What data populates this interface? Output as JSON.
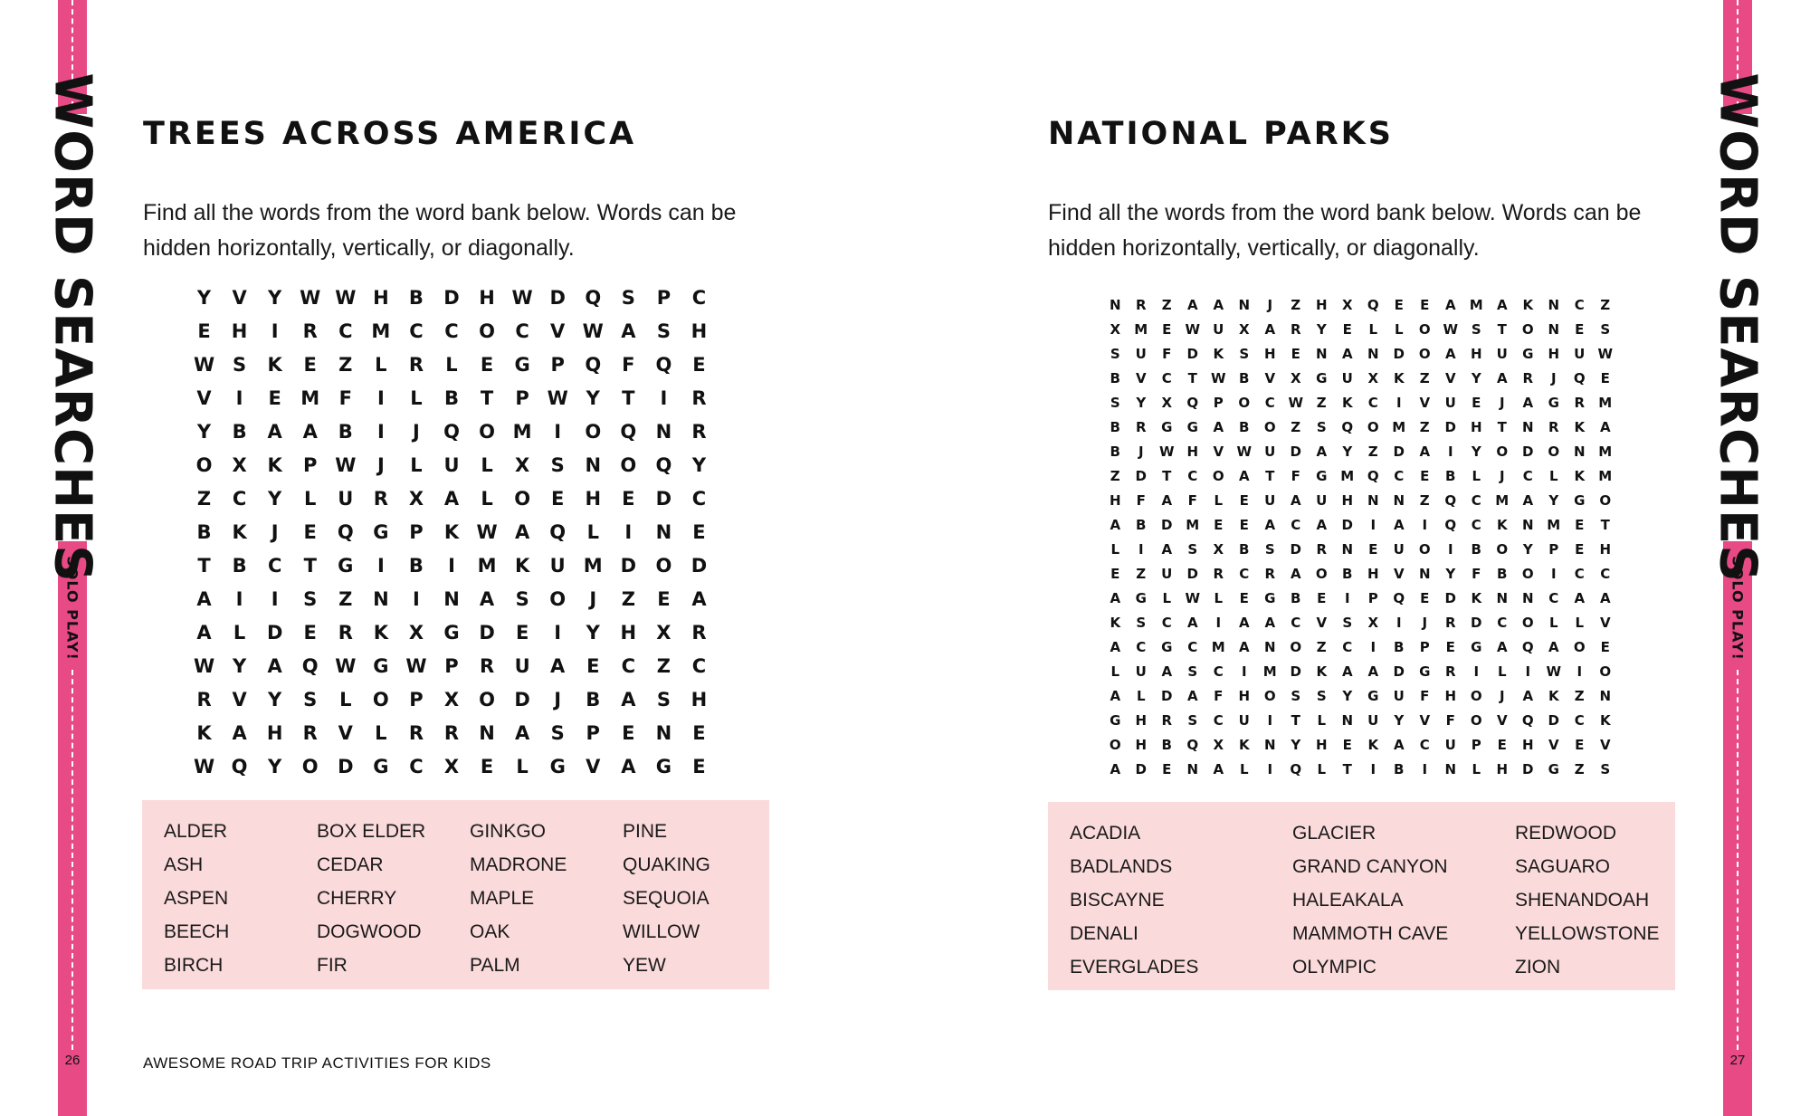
{
  "colors": {
    "accent_pink": "#e84a86",
    "bank_background": "#fbdadb",
    "text": "#111111"
  },
  "sidebar": {
    "title": "WORD SEARCHES",
    "subtitle": "SOLO PLAY!"
  },
  "footer": {
    "book_title": "AWESOME ROAD TRIP ACTIVITIES FOR KIDS"
  },
  "left_page": {
    "page_number": "26",
    "title": "TREES ACROSS AMERICA",
    "instructions": "Find all the words from the word bank below. Words can be hidden horizontally, vertically, or diagonally.",
    "grid": [
      "YVYWWHBDHWDQSPC",
      "EHIRCMCCOCVWASH",
      "WSKEZLRLEGPQFQE",
      "VIEMFILBTPWYTIR",
      "YBAABIJQOMIOQNR",
      "OXKPWJLULXSNOQY",
      "ZCYLURXALOEHEDC",
      "BKJEQGPKWAQLINE",
      "TBCTGIBIMKUMDOD",
      "AIISZNINASOJZEA",
      "ALDERKXGDEIYHXR",
      "WYAQWGWPRUAECZC",
      "RVYSLOPXODJBASH",
      "KAHRVLRRNASPENE",
      "WQYODGCXELGVAGE"
    ],
    "word_bank": [
      [
        "ALDER",
        "ASH",
        "ASPEN",
        "BEECH",
        "BIRCH"
      ],
      [
        "BOX ELDER",
        "CEDAR",
        "CHERRY",
        "DOGWOOD",
        "FIR"
      ],
      [
        "GINKGO",
        "MADRONE",
        "MAPLE",
        "OAK",
        "PALM"
      ],
      [
        "PINE",
        "QUAKING",
        "SEQUOIA",
        "WILLOW",
        "YEW"
      ]
    ]
  },
  "right_page": {
    "page_number": "27",
    "title": "NATIONAL PARKS",
    "instructions": "Find all the words from the word bank below. Words can be hidden horizontally, vertically, or diagonally.",
    "grid": [
      "NRZAANJZHXQEEAMAKNCZ",
      "XMEWUXARYELLOWSTONES",
      "SUFDKSHENANDOAHUGHUW",
      "BVCTWBVXGUXKZVYARJQE",
      "SYXQPOCWZKCIVUEJAGRM",
      "BRGGABOZSQOMZDHTNRKA",
      "BJWHVWUDAYZDAIYODONM",
      "ZDTCOATFGMQCEBLJCLKM",
      "HFAFLEUAUHNNZQCMAYGO",
      "ABDMEEACADIAIQCKNMET",
      "LIASXBSDRNEUOIBOYPEH",
      "EZUDRCRAOBHVNYFBOICC",
      "AGLWLEGBEIPQEDKNNCAA",
      "KSCAIAACVSXIJRDCOLLV",
      "ACGCMANOZCIBPEGAQAOE",
      "LUASCIMDKAADGRILIWIO",
      "ALDAFHOSSYGUFHOJAKZN",
      "GHRSCUITLNUYVFOVQDCK",
      "OHBQXKNYHEKACUPEHVEV",
      "ADENALIQLTIBINLHDGZS"
    ],
    "word_bank": [
      [
        "ACADIA",
        "BADLANDS",
        "BISCAYNE",
        "DENALI",
        "EVERGLADES"
      ],
      [
        "GLACIER",
        "GRAND CANYON",
        "HALEAKALA",
        "MAMMOTH CAVE",
        "OLYMPIC"
      ],
      [
        "REDWOOD",
        "SAGUARO",
        "SHENANDOAH",
        "YELLOWSTONE",
        "ZION"
      ]
    ]
  }
}
